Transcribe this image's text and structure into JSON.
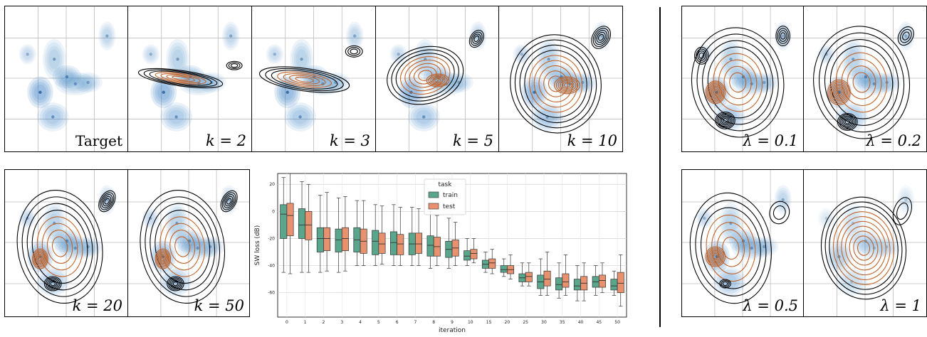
{
  "panels": [
    {
      "label": "Target",
      "style": "target"
    },
    {
      "label": "k = 2",
      "style": "math"
    },
    {
      "label": "k = 3",
      "style": "math"
    },
    {
      "label": "k = 5",
      "style": "math"
    },
    {
      "label": "k = 10",
      "style": "math"
    },
    {
      "label": "k = 20",
      "style": "math"
    },
    {
      "label": "k = 50",
      "style": "math"
    },
    {
      "label": "λ = 0.1",
      "style": "math"
    },
    {
      "label": "λ = 0.2",
      "style": "math"
    },
    {
      "label": "λ = 0.5",
      "style": "math"
    },
    {
      "label": "λ = 1",
      "style": "math"
    }
  ],
  "colors": {
    "target_fill": "#3a82c4",
    "contour_dark": "#000000",
    "contour_orange": "#c0632a",
    "train": "#5aa68c",
    "test": "#e8916e"
  },
  "chart_data": {
    "type": "box",
    "xlabel": "iteration",
    "ylabel": "SW loss (dB)",
    "ylim": [
      -78,
      28
    ],
    "yticks": [
      20,
      0,
      -20,
      -40,
      -60
    ],
    "grid": true,
    "legend": {
      "title": "task",
      "entries": [
        "train",
        "test"
      ],
      "placement": "top-center"
    },
    "categories": [
      "0",
      "1",
      "2",
      "3",
      "4",
      "5",
      "6",
      "7",
      "8",
      "9",
      "10",
      "15",
      "20",
      "25",
      "30",
      "35",
      "40",
      "45",
      "50"
    ],
    "series": [
      {
        "name": "train",
        "boxes": [
          {
            "min": -45,
            "q1": -20,
            "median": -2,
            "q3": 5,
            "max": 25
          },
          {
            "min": -45,
            "q1": -20,
            "median": -10,
            "q3": 2,
            "max": 22
          },
          {
            "min": -45,
            "q1": -30,
            "median": -20,
            "q3": -12,
            "max": 12
          },
          {
            "min": -45,
            "q1": -30,
            "median": -21,
            "q3": -13,
            "max": 10
          },
          {
            "min": -40,
            "q1": -30,
            "median": -21,
            "q3": -12,
            "max": 8
          },
          {
            "min": -40,
            "q1": -32,
            "median": -22,
            "q3": -14,
            "max": 5
          },
          {
            "min": -40,
            "q1": -32,
            "median": -23,
            "q3": -15,
            "max": 5
          },
          {
            "min": -40,
            "q1": -32,
            "median": -24,
            "q3": -16,
            "max": 3
          },
          {
            "min": -42,
            "q1": -33,
            "median": -25,
            "q3": -18,
            "max": 0
          },
          {
            "min": -42,
            "q1": -34,
            "median": -28,
            "q3": -22,
            "max": -5
          },
          {
            "min": -40,
            "q1": -36,
            "median": -33,
            "q3": -29,
            "max": -20
          },
          {
            "min": -45,
            "q1": -42,
            "median": -39,
            "q3": -36,
            "max": -30
          },
          {
            "min": -48,
            "q1": -45,
            "median": -43,
            "q3": -40,
            "max": -35
          },
          {
            "min": -55,
            "q1": -52,
            "median": -49,
            "q3": -46,
            "max": -38
          },
          {
            "min": -62,
            "q1": -57,
            "median": -52,
            "q3": -47,
            "max": -35
          },
          {
            "min": -64,
            "q1": -58,
            "median": -54,
            "q3": -49,
            "max": -38
          },
          {
            "min": -66,
            "q1": -58,
            "median": -55,
            "q3": -50,
            "max": -40
          },
          {
            "min": -62,
            "q1": -56,
            "median": -52,
            "q3": -48,
            "max": -40
          },
          {
            "min": -62,
            "q1": -58,
            "median": -55,
            "q3": -50,
            "max": -44
          }
        ]
      },
      {
        "name": "test",
        "boxes": [
          {
            "min": -46,
            "q1": -18,
            "median": -3,
            "q3": 6,
            "max": 28
          },
          {
            "min": -45,
            "q1": -21,
            "median": -10,
            "q3": 0,
            "max": 20
          },
          {
            "min": -44,
            "q1": -29,
            "median": -20,
            "q3": -12,
            "max": 14
          },
          {
            "min": -44,
            "q1": -29,
            "median": -20,
            "q3": -12,
            "max": 11
          },
          {
            "min": -40,
            "q1": -31,
            "median": -22,
            "q3": -13,
            "max": 8
          },
          {
            "min": -39,
            "q1": -31,
            "median": -24,
            "q3": -16,
            "max": 4
          },
          {
            "min": -40,
            "q1": -32,
            "median": -24,
            "q3": -17,
            "max": 3
          },
          {
            "min": -40,
            "q1": -31,
            "median": -24,
            "q3": -16,
            "max": 2
          },
          {
            "min": -40,
            "q1": -33,
            "median": -26,
            "q3": -19,
            "max": -3
          },
          {
            "min": -40,
            "q1": -33,
            "median": -27,
            "q3": -21,
            "max": -8
          },
          {
            "min": -38,
            "q1": -35,
            "median": -31,
            "q3": -28,
            "max": -20
          },
          {
            "min": -46,
            "q1": -42,
            "median": -38,
            "q3": -35,
            "max": -28
          },
          {
            "min": -50,
            "q1": -46,
            "median": -43,
            "q3": -40,
            "max": -32
          },
          {
            "min": -55,
            "q1": -52,
            "median": -48,
            "q3": -45,
            "max": -38
          },
          {
            "min": -62,
            "q1": -55,
            "median": -50,
            "q3": -44,
            "max": -30
          },
          {
            "min": -62,
            "q1": -56,
            "median": -52,
            "q3": -46,
            "max": -32
          },
          {
            "min": -66,
            "q1": -58,
            "median": -53,
            "q3": -48,
            "max": -38
          },
          {
            "min": -60,
            "q1": -56,
            "median": -51,
            "q3": -47,
            "max": -38
          },
          {
            "min": -70,
            "q1": -60,
            "median": -53,
            "q3": -45,
            "max": -32
          }
        ]
      }
    ]
  }
}
